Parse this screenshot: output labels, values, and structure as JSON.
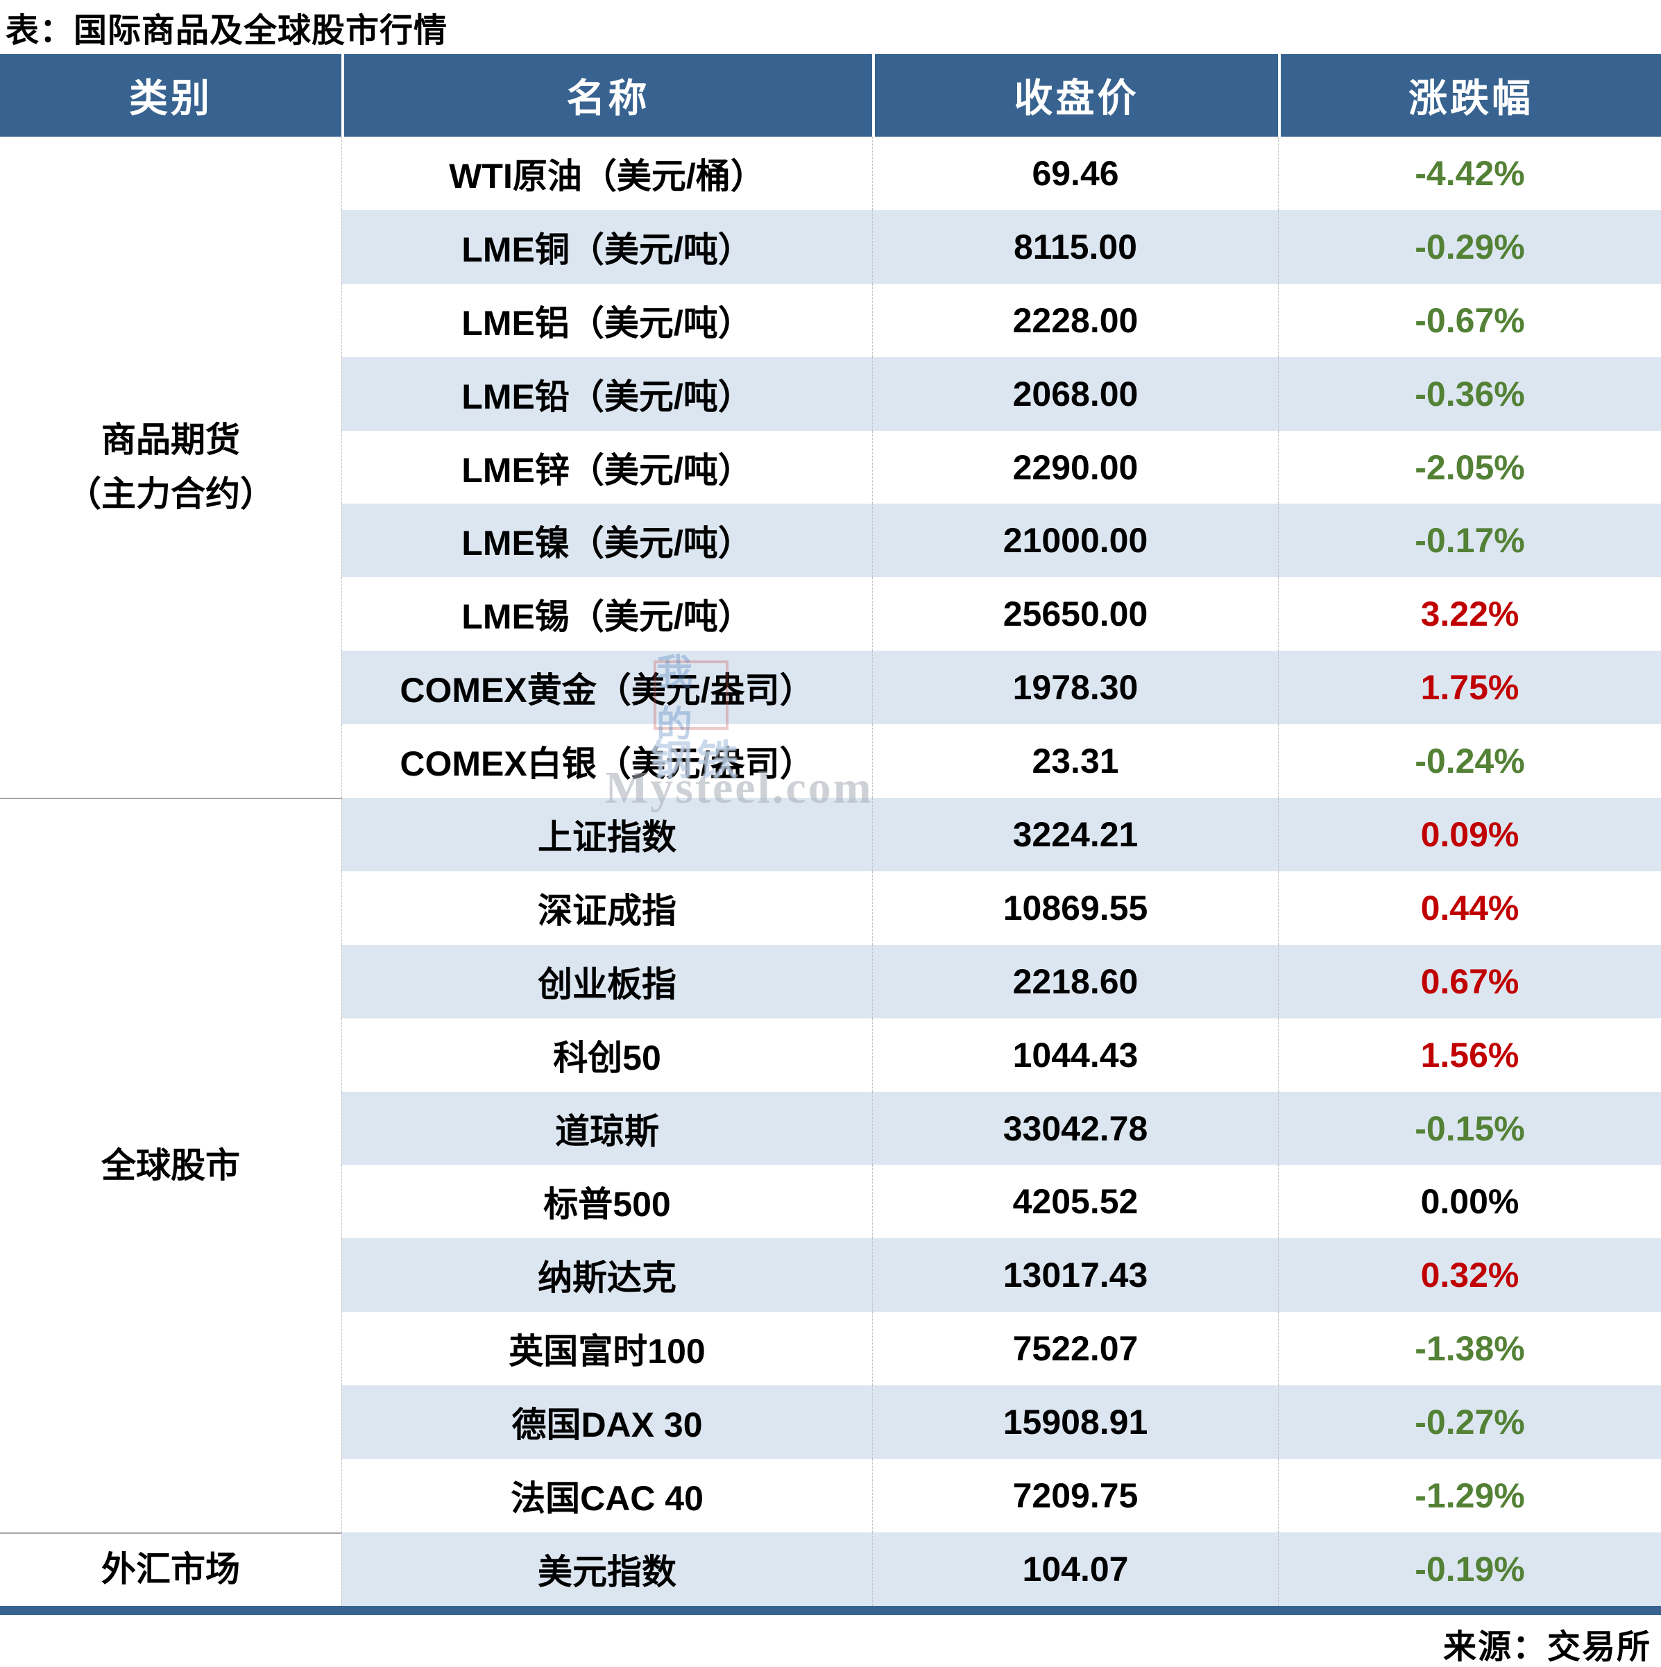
{
  "chart_data": {
    "type": "table",
    "title": "表：国际商品及全球股市行情",
    "columns": [
      "类别",
      "名称",
      "收盘价",
      "涨跌幅"
    ],
    "sections": [
      {
        "category": [
          "商品期货",
          "（主力合约）"
        ],
        "rows": [
          {
            "name": "WTI原油（美元/桶）",
            "close": "69.46",
            "change": "-4.42%",
            "dir": "down"
          },
          {
            "name": "LME铜（美元/吨）",
            "close": "8115.00",
            "change": "-0.29%",
            "dir": "down"
          },
          {
            "name": "LME铝（美元/吨）",
            "close": "2228.00",
            "change": "-0.67%",
            "dir": "down"
          },
          {
            "name": "LME铅（美元/吨）",
            "close": "2068.00",
            "change": "-0.36%",
            "dir": "down"
          },
          {
            "name": "LME锌（美元/吨）",
            "close": "2290.00",
            "change": "-2.05%",
            "dir": "down"
          },
          {
            "name": "LME镍（美元/吨）",
            "close": "21000.00",
            "change": "-0.17%",
            "dir": "down"
          },
          {
            "name": "LME锡（美元/吨）",
            "close": "25650.00",
            "change": "3.22%",
            "dir": "up"
          },
          {
            "name": "COMEX黄金（美元/盎司）",
            "close": "1978.30",
            "change": "1.75%",
            "dir": "up"
          },
          {
            "name": "COMEX白银（美元/盎司）",
            "close": "23.31",
            "change": "-0.24%",
            "dir": "down"
          }
        ]
      },
      {
        "category": [
          "全球股市"
        ],
        "rows": [
          {
            "name": "上证指数",
            "close": "3224.21",
            "change": "0.09%",
            "dir": "up"
          },
          {
            "name": "深证成指",
            "close": "10869.55",
            "change": "0.44%",
            "dir": "up"
          },
          {
            "name": "创业板指",
            "close": "2218.60",
            "change": "0.67%",
            "dir": "up"
          },
          {
            "name": "科创50",
            "close": "1044.43",
            "change": "1.56%",
            "dir": "up"
          },
          {
            "name": "道琼斯",
            "close": "33042.78",
            "change": "-0.15%",
            "dir": "down"
          },
          {
            "name": "标普500",
            "close": "4205.52",
            "change": "0.00%",
            "dir": "flat"
          },
          {
            "name": "纳斯达克",
            "close": "13017.43",
            "change": "0.32%",
            "dir": "up"
          },
          {
            "name": "英国富时100",
            "close": "7522.07",
            "change": "-1.38%",
            "dir": "down"
          },
          {
            "name": "德国DAX 30",
            "close": "15908.91",
            "change": "-0.27%",
            "dir": "down"
          },
          {
            "name": "法国CAC 40",
            "close": "7209.75",
            "change": "-1.29%",
            "dir": "down"
          }
        ]
      },
      {
        "category": [
          "外汇市场"
        ],
        "rows": [
          {
            "name": "美元指数",
            "close": "104.07",
            "change": "-0.19%",
            "dir": "down"
          }
        ]
      }
    ],
    "source": "来源：交易所"
  },
  "watermark": {
    "logo_top": "我的",
    "logo_bottom": "钢铁",
    "text": "Mysteel.com"
  },
  "colors": {
    "header_bg": "#386390",
    "row_alt_bg": "#DCE6F1",
    "positive_red": "#C00000",
    "negative_green": "#538135",
    "flat_black": "#000000"
  }
}
